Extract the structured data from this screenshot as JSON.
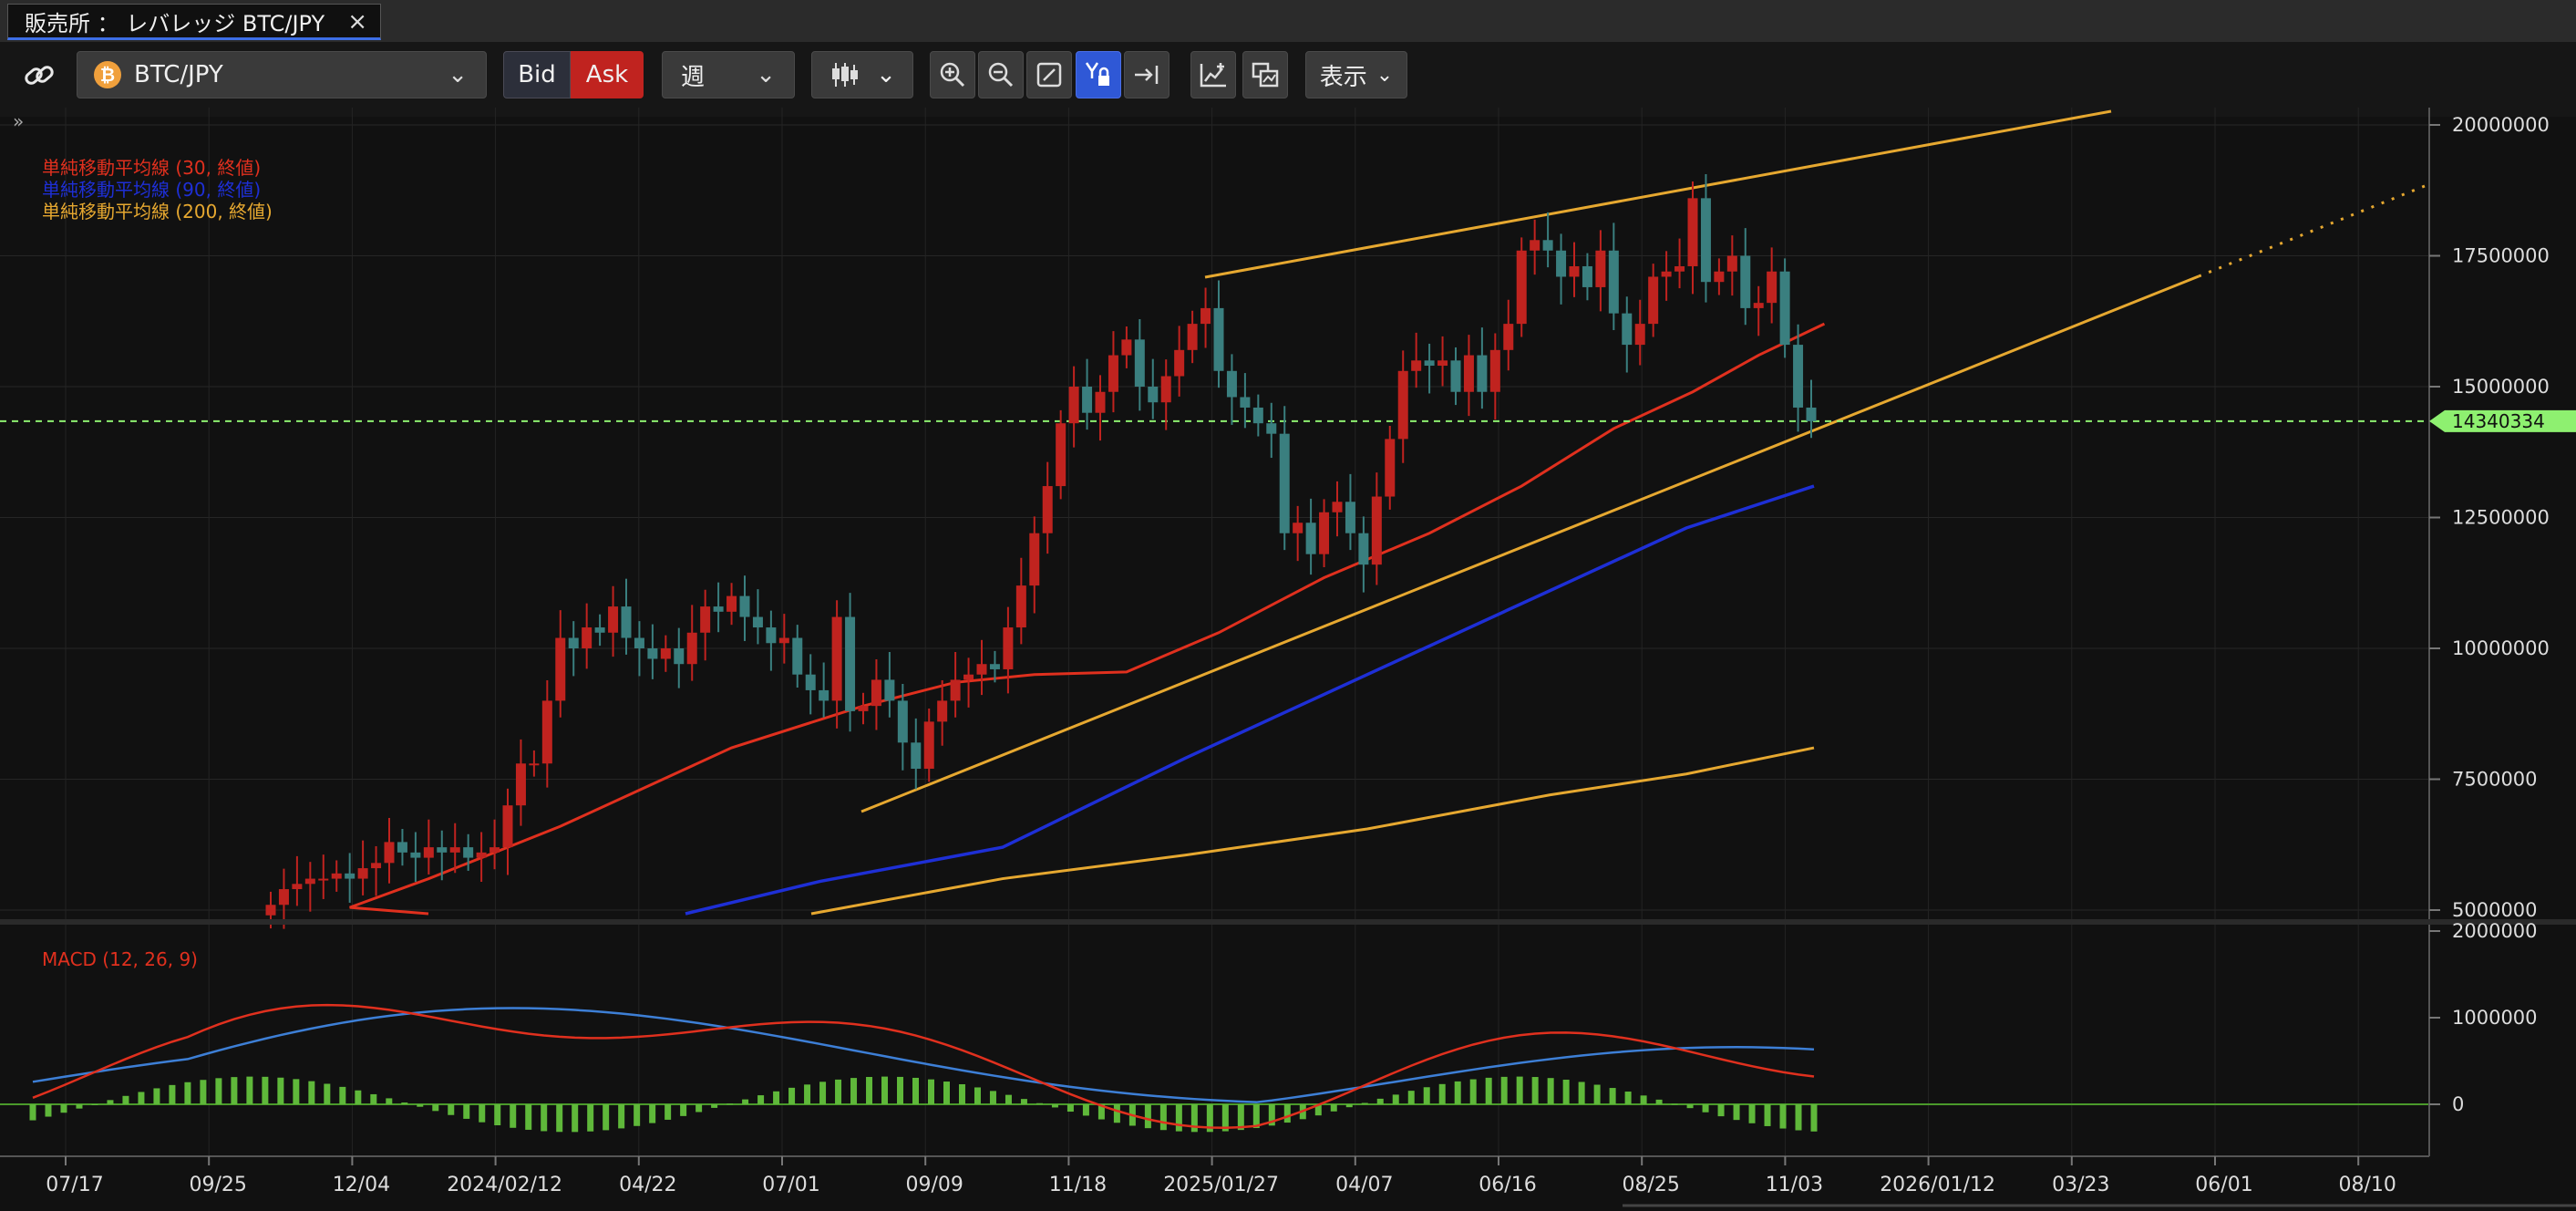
{
  "tab": {
    "title": "販売所 ： レバレッジ BTC/JPY",
    "close": "×"
  },
  "toolbar": {
    "symbol": "BTC/JPY",
    "bid": "Bid",
    "ask": "Ask",
    "period": "週",
    "display": "表示",
    "chevron": "⌄"
  },
  "panel_toggle": "»",
  "colors": {
    "up": "#c0231f",
    "down": "#3a7f7f",
    "ma30": "#e0301e",
    "ma90": "#1e2fd6",
    "ma200": "#e6a830",
    "trend": "#e6a830",
    "macd": "#e0301e",
    "signal": "#3d7fd6",
    "hist": "#5fb83a",
    "price_tag": "#8ef070"
  },
  "indicators": {
    "ma30": "単純移動平均線 (30, 終値)",
    "ma90": "単純移動平均線 (90, 終値)",
    "ma200": "単純移動平均線 (200, 終値)",
    "macd": "MACD (12, 26, 9)"
  },
  "price_axis": [
    "20000000",
    "17500000",
    "15000000",
    "12500000",
    "10000000",
    "7500000",
    "5000000"
  ],
  "macd_axis": [
    "2000000",
    "1000000",
    "0"
  ],
  "current_price": "14340334",
  "x_axis": [
    "07/17",
    "09/25",
    "12/04",
    "2024/02/12",
    "04/22",
    "07/01",
    "09/09",
    "11/18",
    "2025/01/27",
    "04/07",
    "06/16",
    "08/25",
    "11/03",
    "2026/01/12",
    "03/23",
    "06/01",
    "08/10"
  ],
  "chart_data": {
    "type": "candlestick",
    "timeframe": "weekly",
    "ylim": [
      5000000,
      20000000
    ],
    "current_price": 14340334,
    "candles_close": [
      5.1,
      5.4,
      5.5,
      5.6,
      5.6,
      5.7,
      5.6,
      5.8,
      5.9,
      6.3,
      6.1,
      6.0,
      6.2,
      6.1,
      6.2,
      6.0,
      6.1,
      6.2,
      7.0,
      7.8,
      7.8,
      9.0,
      10.2,
      10.0,
      10.4,
      10.3,
      10.8,
      10.2,
      10.0,
      9.8,
      10.0,
      9.7,
      10.3,
      10.8,
      10.7,
      11.0,
      10.6,
      10.4,
      10.1,
      10.2,
      9.5,
      9.2,
      9.0,
      10.6,
      8.8,
      8.9,
      9.4,
      9.0,
      8.2,
      7.7,
      8.6,
      9.0,
      9.4,
      9.5,
      9.7,
      9.6,
      10.4,
      11.2,
      12.2,
      13.1,
      14.3,
      15.0,
      14.5,
      14.9,
      15.6,
      15.9,
      15.0,
      14.7,
      15.2,
      15.7,
      16.2,
      16.5,
      15.3,
      14.8,
      14.6,
      14.3,
      14.1,
      12.2,
      12.4,
      11.8,
      12.6,
      12.8,
      12.2,
      11.6,
      12.9,
      14.0,
      15.3,
      15.5,
      15.4,
      15.5,
      14.9,
      15.6,
      14.9,
      15.7,
      16.2,
      17.6,
      17.8,
      17.6,
      17.1,
      17.3,
      16.9,
      17.6,
      16.4,
      15.8,
      16.2,
      17.1,
      17.2,
      17.3,
      18.6,
      17.0,
      17.2,
      17.5,
      16.5,
      16.6,
      17.2,
      15.8,
      14.6,
      14.34
    ],
    "sma30_start_end": [
      4.8,
      16.2
    ],
    "sma90_start_end": [
      5.0,
      13.1
    ],
    "sma200_start_end": [
      5.0,
      8.1
    ],
    "macd_ylim": [
      -600000,
      2000000
    ]
  }
}
